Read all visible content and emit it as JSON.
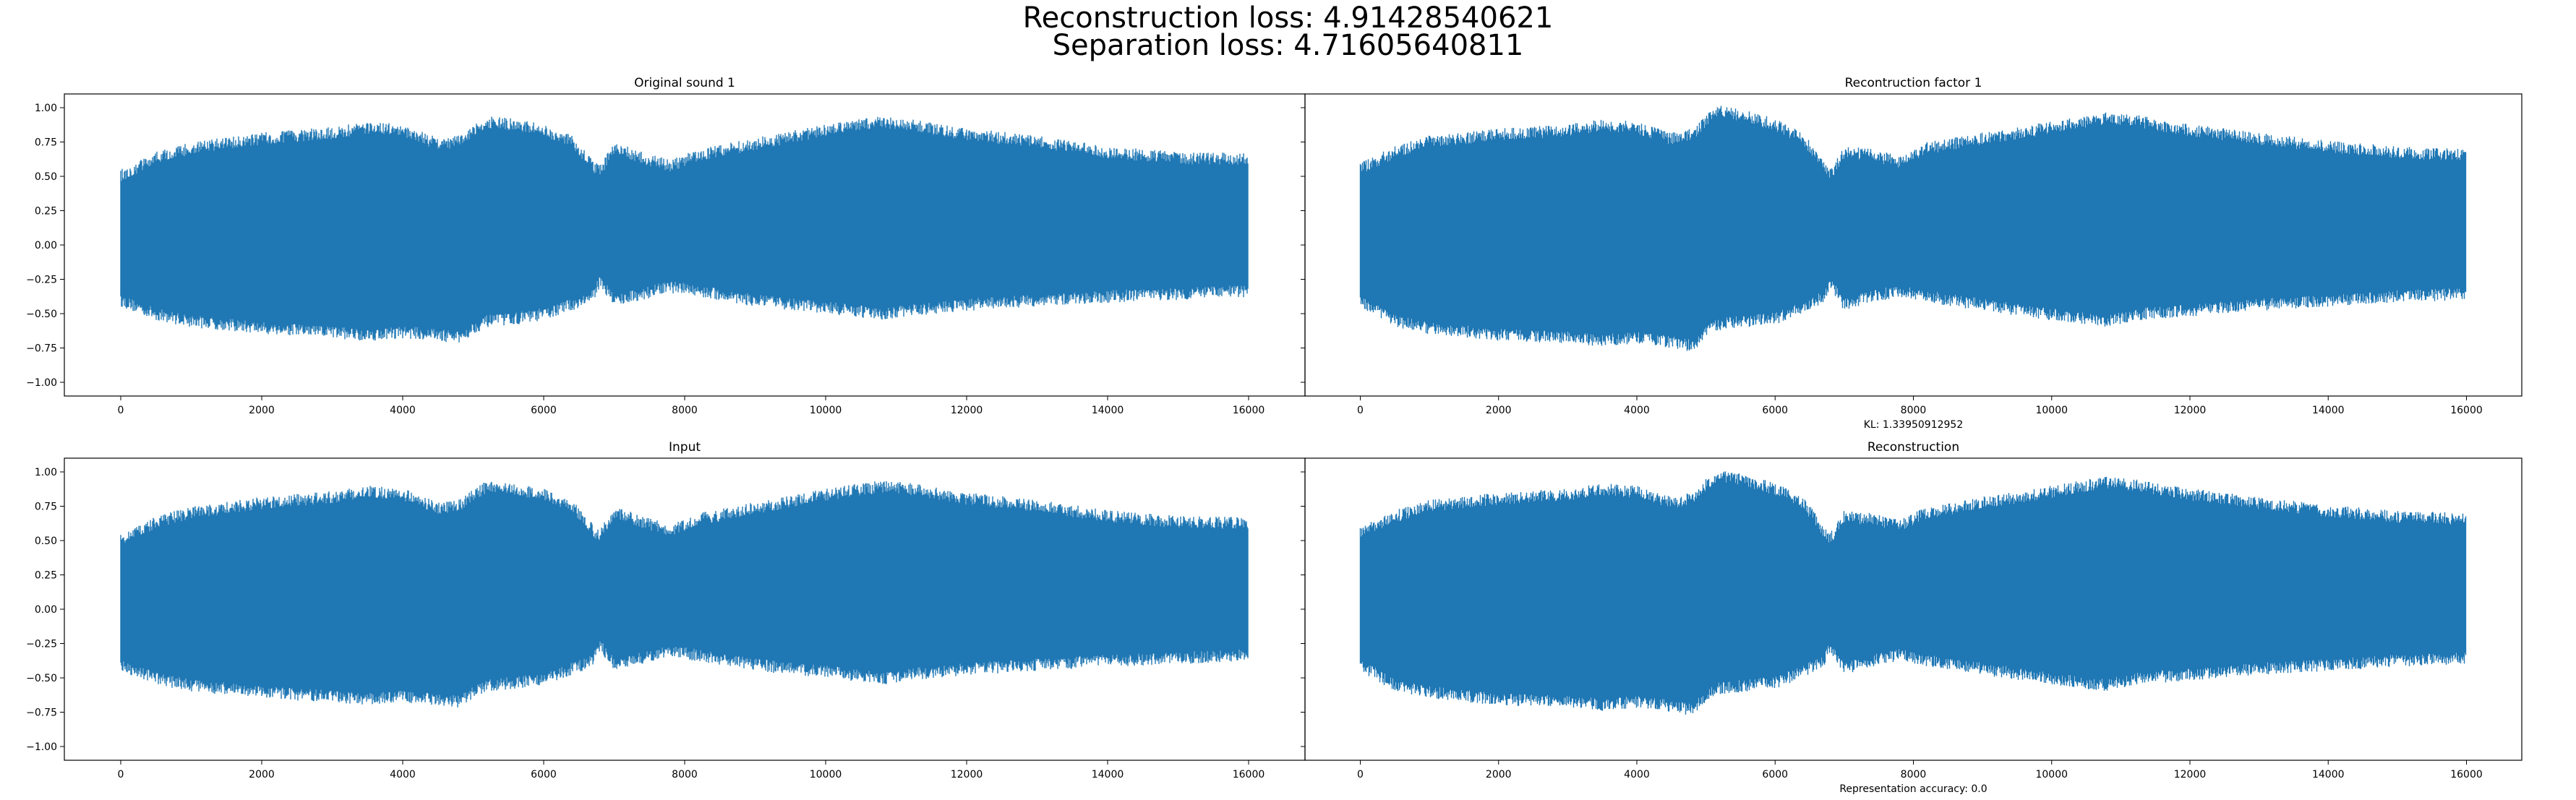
{
  "figure": {
    "suptitle_line1": "Reconstruction loss: 4.91428540621",
    "suptitle_line2": "Separation loss: 4.71605640811",
    "series_color": "#1f77b4"
  },
  "chart_data": [
    {
      "type": "line",
      "title": "Original sound 1",
      "xlabel": "",
      "ylabel": "",
      "xlim": [
        -800,
        16800
      ],
      "ylim": [
        -1.1,
        1.1
      ],
      "xticks": [
        0,
        2000,
        4000,
        6000,
        8000,
        10000,
        12000,
        14000,
        16000
      ],
      "xtick_labels": [
        "0",
        "2000",
        "4000",
        "6000",
        "8000",
        "10000",
        "12000",
        "14000",
        "16000"
      ],
      "yticks": [
        1.0,
        0.75,
        0.5,
        0.25,
        0.0,
        -0.25,
        -0.5,
        -0.75,
        -1.0
      ],
      "ytick_labels": [
        "1.00",
        "0.75",
        "0.50",
        "0.25",
        "0.00",
        "−0.25",
        "−0.50",
        "−0.75",
        "−1.00"
      ],
      "n_samples": 16000,
      "envelope": {
        "x": [
          0,
          500,
          1000,
          2000,
          3000,
          3500,
          4000,
          4500,
          4800,
          5000,
          5200,
          5600,
          6000,
          6400,
          6700,
          6800,
          7000,
          7400,
          7800,
          8200,
          9000,
          10000,
          10800,
          11200,
          12000,
          13000,
          14000,
          15000,
          16000
        ],
        "upper": [
          0.55,
          0.68,
          0.75,
          0.82,
          0.86,
          0.9,
          0.88,
          0.78,
          0.8,
          0.88,
          0.94,
          0.92,
          0.88,
          0.8,
          0.62,
          0.58,
          0.75,
          0.68,
          0.62,
          0.7,
          0.78,
          0.88,
          0.94,
          0.92,
          0.85,
          0.8,
          0.72,
          0.68,
          0.67
        ],
        "lower": [
          -0.45,
          -0.55,
          -0.6,
          -0.65,
          -0.68,
          -0.7,
          -0.68,
          -0.7,
          -0.72,
          -0.65,
          -0.6,
          -0.58,
          -0.55,
          -0.48,
          -0.42,
          -0.3,
          -0.45,
          -0.4,
          -0.35,
          -0.38,
          -0.45,
          -0.5,
          -0.55,
          -0.52,
          -0.48,
          -0.45,
          -0.42,
          -0.4,
          -0.38
        ]
      }
    },
    {
      "type": "line",
      "title": "Recontruction factor 1",
      "xlabel": "KL: 1.33950912952",
      "ylabel": "",
      "xlim": [
        -800,
        16800
      ],
      "ylim": [
        -1.1,
        1.1
      ],
      "xticks": [
        0,
        2000,
        4000,
        6000,
        8000,
        10000,
        12000,
        14000,
        16000
      ],
      "xtick_labels": [
        "0",
        "2000",
        "4000",
        "6000",
        "8000",
        "10000",
        "12000",
        "14000",
        "16000"
      ],
      "yticks": [
        1.0,
        0.75,
        0.5,
        0.25,
        0.0,
        -0.25,
        -0.5,
        -0.75,
        -1.0
      ],
      "n_samples": 16000,
      "envelope": {
        "x": [
          0,
          500,
          1000,
          2000,
          3000,
          3500,
          4000,
          4500,
          4800,
          5000,
          5200,
          5600,
          6000,
          6400,
          6700,
          6800,
          7000,
          7400,
          7800,
          8200,
          9000,
          10000,
          10800,
          11200,
          12000,
          13000,
          14000,
          15000,
          16000
        ],
        "upper": [
          0.6,
          0.72,
          0.8,
          0.85,
          0.88,
          0.92,
          0.9,
          0.82,
          0.85,
          0.95,
          1.02,
          0.98,
          0.92,
          0.82,
          0.62,
          0.56,
          0.72,
          0.7,
          0.65,
          0.75,
          0.82,
          0.9,
          0.97,
          0.95,
          0.88,
          0.82,
          0.76,
          0.72,
          0.7
        ],
        "lower": [
          -0.45,
          -0.6,
          -0.65,
          -0.7,
          -0.72,
          -0.74,
          -0.72,
          -0.75,
          -0.78,
          -0.68,
          -0.62,
          -0.6,
          -0.58,
          -0.5,
          -0.42,
          -0.32,
          -0.48,
          -0.42,
          -0.38,
          -0.42,
          -0.48,
          -0.55,
          -0.6,
          -0.55,
          -0.52,
          -0.48,
          -0.45,
          -0.42,
          -0.4
        ]
      }
    },
    {
      "type": "line",
      "title": "Input",
      "xlabel": "",
      "ylabel": "",
      "xlim": [
        -800,
        16800
      ],
      "ylim": [
        -1.1,
        1.1
      ],
      "xticks": [
        0,
        2000,
        4000,
        6000,
        8000,
        10000,
        12000,
        14000,
        16000
      ],
      "xtick_labels": [
        "0",
        "2000",
        "4000",
        "6000",
        "8000",
        "10000",
        "12000",
        "14000",
        "16000"
      ],
      "yticks": [
        1.0,
        0.75,
        0.5,
        0.25,
        0.0,
        -0.25,
        -0.5,
        -0.75,
        -1.0
      ],
      "ytick_labels": [
        "1.00",
        "0.75",
        "0.50",
        "0.25",
        "0.00",
        "−0.25",
        "−0.50",
        "−0.75",
        "−1.00"
      ],
      "n_samples": 16000,
      "envelope": {
        "x": [
          0,
          500,
          1000,
          2000,
          3000,
          3500,
          4000,
          4500,
          4800,
          5000,
          5200,
          5600,
          6000,
          6400,
          6700,
          6800,
          7000,
          7400,
          7800,
          8200,
          9000,
          10000,
          10800,
          11200,
          12000,
          13000,
          14000,
          15000,
          16000
        ],
        "upper": [
          0.55,
          0.68,
          0.75,
          0.82,
          0.86,
          0.9,
          0.88,
          0.78,
          0.8,
          0.88,
          0.94,
          0.92,
          0.88,
          0.8,
          0.62,
          0.58,
          0.75,
          0.68,
          0.62,
          0.7,
          0.78,
          0.88,
          0.94,
          0.92,
          0.85,
          0.8,
          0.72,
          0.68,
          0.67
        ],
        "lower": [
          -0.45,
          -0.55,
          -0.6,
          -0.65,
          -0.68,
          -0.7,
          -0.68,
          -0.7,
          -0.72,
          -0.65,
          -0.6,
          -0.58,
          -0.55,
          -0.48,
          -0.42,
          -0.3,
          -0.45,
          -0.4,
          -0.35,
          -0.38,
          -0.45,
          -0.5,
          -0.55,
          -0.52,
          -0.48,
          -0.45,
          -0.42,
          -0.4,
          -0.38
        ]
      }
    },
    {
      "type": "line",
      "title": "Reconstruction",
      "xlabel": "Representation accuracy: 0.0",
      "ylabel": "",
      "xlim": [
        -800,
        16800
      ],
      "ylim": [
        -1.1,
        1.1
      ],
      "xticks": [
        0,
        2000,
        4000,
        6000,
        8000,
        10000,
        12000,
        14000,
        16000
      ],
      "xtick_labels": [
        "0",
        "2000",
        "4000",
        "6000",
        "8000",
        "10000",
        "12000",
        "14000",
        "16000"
      ],
      "yticks": [
        1.0,
        0.75,
        0.5,
        0.25,
        0.0,
        -0.25,
        -0.5,
        -0.75,
        -1.0
      ],
      "n_samples": 16000,
      "envelope": {
        "x": [
          0,
          500,
          1000,
          2000,
          3000,
          3500,
          4000,
          4500,
          4800,
          5000,
          5200,
          5600,
          6000,
          6400,
          6700,
          6800,
          7000,
          7400,
          7800,
          8200,
          9000,
          10000,
          10800,
          11200,
          12000,
          13000,
          14000,
          15000,
          16000
        ],
        "upper": [
          0.6,
          0.72,
          0.8,
          0.85,
          0.88,
          0.92,
          0.9,
          0.82,
          0.85,
          0.95,
          1.02,
          0.98,
          0.92,
          0.82,
          0.62,
          0.56,
          0.72,
          0.7,
          0.65,
          0.75,
          0.82,
          0.9,
          0.97,
          0.95,
          0.88,
          0.82,
          0.76,
          0.72,
          0.7
        ],
        "lower": [
          -0.45,
          -0.6,
          -0.65,
          -0.7,
          -0.72,
          -0.74,
          -0.72,
          -0.75,
          -0.78,
          -0.68,
          -0.62,
          -0.6,
          -0.58,
          -0.5,
          -0.42,
          -0.32,
          -0.48,
          -0.42,
          -0.38,
          -0.42,
          -0.48,
          -0.55,
          -0.6,
          -0.55,
          -0.52,
          -0.48,
          -0.45,
          -0.42,
          -0.4
        ]
      }
    }
  ]
}
